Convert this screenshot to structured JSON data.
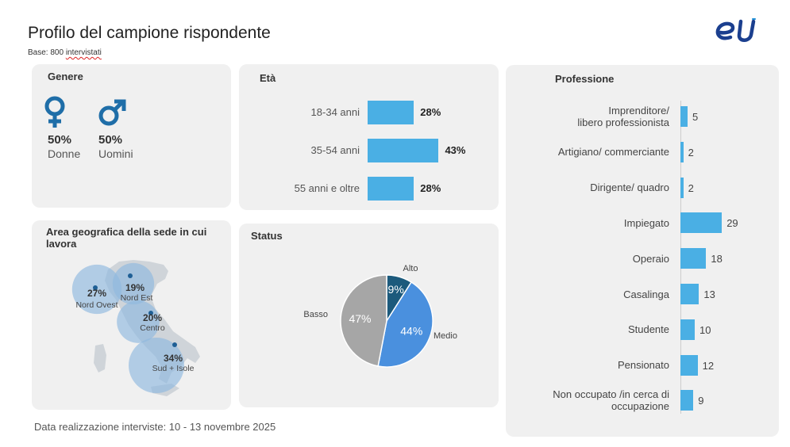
{
  "header": {
    "title": "Profilo del campione rispondente",
    "base_label": "Base: 800 ",
    "base_word": "intervistati"
  },
  "logo": {
    "icon": "eu-logo-icon",
    "color": "#1b3f8f",
    "accent": "#1f8fd6"
  },
  "genere": {
    "title": "Genere",
    "items": [
      {
        "pct": "50%",
        "label": "Donne",
        "icon": "female-symbol-icon"
      },
      {
        "pct": "50%",
        "label": "Uomini",
        "icon": "male-symbol-icon"
      }
    ],
    "icon_color": "#1f6ea8"
  },
  "eta": {
    "title": "Età",
    "chart_data": {
      "type": "bar",
      "orientation": "horizontal",
      "categories": [
        "18-34 anni",
        "35-54 anni",
        "55 anni e oltre"
      ],
      "values": [
        28,
        43,
        28
      ],
      "value_labels": [
        "28%",
        "43%",
        "28%"
      ],
      "color": "#4aafe4"
    }
  },
  "area": {
    "title": "Area geografica della sede in cui lavora",
    "chart_data": {
      "type": "bubble",
      "categories": [
        "Nord Ovest",
        "Nord Est",
        "Centro",
        "Sud + Isole"
      ],
      "values": [
        27,
        19,
        20,
        34
      ],
      "value_labels": [
        "27%",
        "19%",
        "20%",
        "34%"
      ],
      "color": "#8fb8de"
    }
  },
  "status": {
    "title": "Status",
    "chart_data": {
      "type": "pie",
      "categories": [
        "Alto",
        "Medio",
        "Basso"
      ],
      "values": [
        9,
        44,
        47
      ],
      "value_labels": [
        "9%",
        "44%",
        "47%"
      ],
      "colors": [
        "#1c5a7c",
        "#4a90de",
        "#a6a6a6"
      ]
    }
  },
  "professione": {
    "title": "Professione",
    "chart_data": {
      "type": "bar",
      "orientation": "horizontal",
      "categories": [
        [
          "Imprenditore/",
          "libero professionista"
        ],
        [
          "Artigiano/ commerciante"
        ],
        [
          "Dirigente/ quadro"
        ],
        [
          "Impiegato"
        ],
        [
          "Operaio"
        ],
        [
          "Casalinga"
        ],
        [
          "Studente"
        ],
        [
          "Pensionato"
        ],
        [
          "Non occupato /in cerca di",
          "occupazione"
        ]
      ],
      "values": [
        5,
        2,
        2,
        29,
        18,
        13,
        10,
        12,
        9
      ],
      "value_labels": [
        "5",
        "2",
        "2",
        "29",
        "18",
        "13",
        "10",
        "12",
        "9"
      ],
      "color": "#4aafe4"
    }
  },
  "footer": {
    "text": "Data realizzazione interviste: 10 - 13 novembre 2025"
  }
}
